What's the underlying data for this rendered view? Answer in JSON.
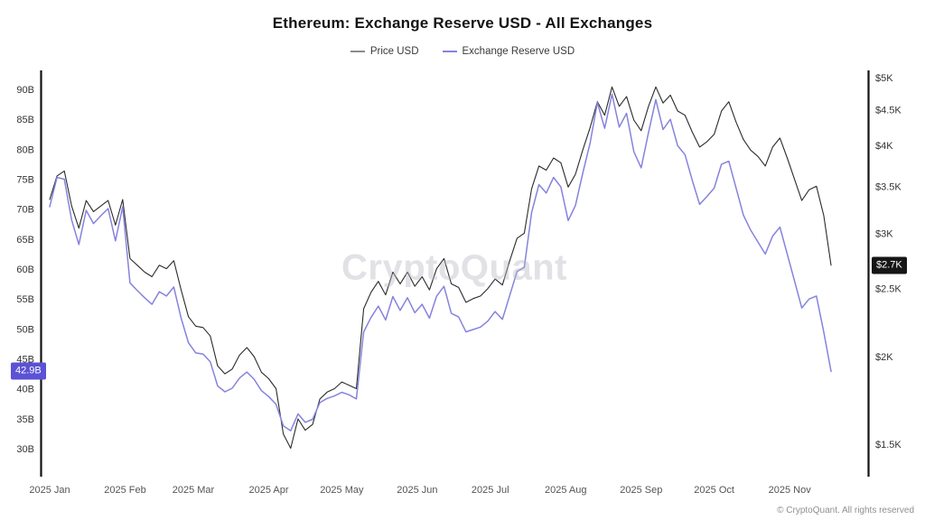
{
  "watermark": {
    "text": "CryptoQuant"
  },
  "footer": {
    "copyright": "© CryptoQuant. All rights reserved"
  },
  "chart_data": {
    "type": "line",
    "title": "Ethereum: Exchange Reserve USD - All Exchanges",
    "x_start_date": "2025-01-01",
    "x_interval_days": 3,
    "x_axis": {
      "tick_labels": [
        "2025 Jan",
        "2025 Feb",
        "2025 Mar",
        "2025 Apr",
        "2025 May",
        "2025 Jun",
        "2025 Jul",
        "2025 Aug",
        "2025 Sep",
        "2025 Oct",
        "2025 Nov"
      ],
      "tick_day_offsets": [
        0,
        31,
        59,
        90,
        120,
        151,
        181,
        212,
        243,
        273,
        304
      ]
    },
    "left_axis": {
      "scale": "linear",
      "unit": "B USD",
      "range": [
        30,
        90
      ],
      "tick_values": [
        90,
        85,
        80,
        75,
        70,
        65,
        60,
        55,
        50,
        45,
        40,
        35,
        30
      ],
      "tick_labels": [
        "90B",
        "85B",
        "80B",
        "75B",
        "70B",
        "65B",
        "60B",
        "55B",
        "50B",
        "45B",
        "40B",
        "35B",
        "30B"
      ]
    },
    "right_axis": {
      "scale": "log",
      "unit": "K USD",
      "range": [
        1.5,
        5
      ],
      "tick_values": [
        5,
        4.5,
        4,
        3.5,
        3,
        2.5,
        2,
        1.5
      ],
      "tick_labels": [
        "$5K",
        "$4.5K",
        "$4K",
        "$3.5K",
        "$3K",
        "$2.5K",
        "$2K",
        "$1.5K"
      ]
    },
    "series": [
      {
        "name": "Price USD",
        "axis": "right",
        "unit": "K USD",
        "color": "#2b2b2b",
        "legend_color": "#8b8b8b",
        "values": [
          3.35,
          3.62,
          3.68,
          3.28,
          3.05,
          3.34,
          3.22,
          3.28,
          3.34,
          3.08,
          3.35,
          2.76,
          2.7,
          2.64,
          2.6,
          2.7,
          2.67,
          2.74,
          2.49,
          2.28,
          2.21,
          2.2,
          2.14,
          1.94,
          1.89,
          1.92,
          2.01,
          2.06,
          2.0,
          1.9,
          1.86,
          1.8,
          1.55,
          1.48,
          1.63,
          1.57,
          1.6,
          1.74,
          1.78,
          1.8,
          1.84,
          1.82,
          1.8,
          2.34,
          2.47,
          2.56,
          2.45,
          2.64,
          2.54,
          2.64,
          2.52,
          2.6,
          2.49,
          2.67,
          2.76,
          2.54,
          2.51,
          2.39,
          2.42,
          2.44,
          2.5,
          2.58,
          2.53,
          2.74,
          2.95,
          3.0,
          3.47,
          3.74,
          3.69,
          3.84,
          3.78,
          3.49,
          3.64,
          3.94,
          4.24,
          4.62,
          4.42,
          4.85,
          4.55,
          4.7,
          4.35,
          4.2,
          4.55,
          4.85,
          4.6,
          4.72,
          4.48,
          4.42,
          4.18,
          3.98,
          4.05,
          4.15,
          4.48,
          4.62,
          4.32,
          4.08,
          3.94,
          3.86,
          3.74,
          3.98,
          4.1,
          3.84,
          3.58,
          3.34,
          3.46,
          3.5,
          3.18,
          2.7
        ]
      },
      {
        "name": "Exchange Reserve USD",
        "axis": "left",
        "unit": "B USD",
        "color": "#8583dd",
        "legend_color": "#8583dd",
        "values": [
          70.4,
          75.3,
          75.0,
          68.2,
          64.1,
          69.8,
          67.6,
          68.9,
          70.1,
          64.7,
          70.4,
          57.7,
          56.4,
          55.2,
          54.1,
          56.2,
          55.5,
          57.0,
          51.8,
          47.7,
          46.0,
          45.8,
          44.5,
          40.5,
          39.5,
          40.1,
          41.8,
          42.8,
          41.6,
          39.7,
          38.7,
          37.4,
          33.8,
          33.0,
          35.8,
          34.4,
          34.9,
          37.7,
          38.4,
          38.8,
          39.4,
          39.0,
          38.3,
          49.5,
          51.9,
          53.8,
          51.5,
          55.4,
          53.1,
          55.2,
          52.7,
          54.1,
          51.8,
          55.5,
          57.1,
          52.6,
          52.0,
          49.5,
          49.9,
          50.3,
          51.3,
          52.9,
          51.6,
          55.6,
          59.6,
          60.3,
          69.4,
          74.1,
          72.7,
          75.3,
          73.7,
          68.1,
          70.6,
          76.0,
          81.0,
          87.8,
          83.5,
          89.2,
          83.7,
          86.0,
          79.6,
          76.9,
          82.8,
          88.3,
          83.3,
          85.0,
          80.6,
          79.1,
          74.8,
          70.8,
          72.1,
          73.5,
          77.5,
          78.0,
          73.5,
          69.0,
          66.5,
          64.5,
          62.5,
          65.5,
          67.0,
          62.5,
          58.0,
          53.5,
          55.0,
          55.5,
          49.5,
          42.9
        ]
      }
    ],
    "current_values": {
      "reserve_label": "42.9B",
      "reserve_badge_color": "#5b52d5",
      "price_label": "$2.7K",
      "price_badge_color": "#161616"
    }
  }
}
